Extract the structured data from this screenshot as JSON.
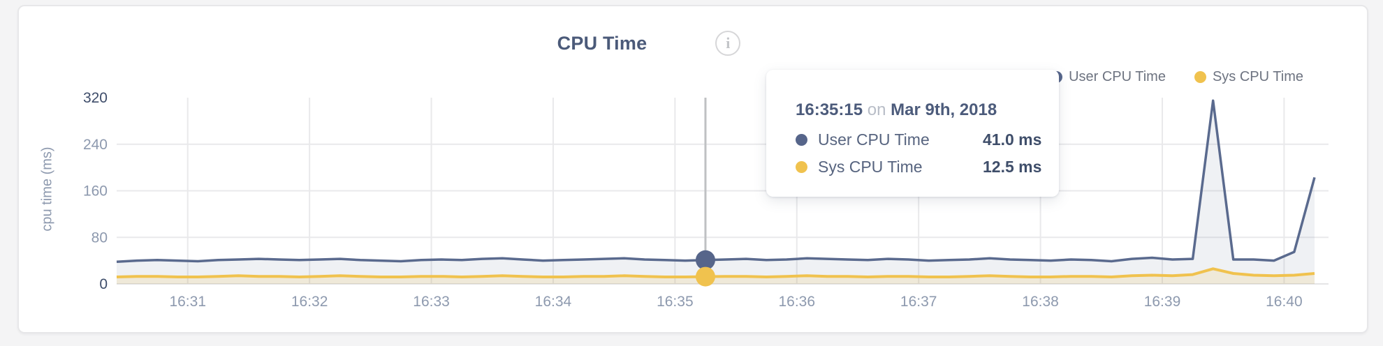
{
  "chart": {
    "title": "CPU Time",
    "info_icon": "i",
    "ylabel": "cpu time (ms)"
  },
  "legend": {
    "items": [
      {
        "label": "User CPU Time",
        "color": "#56658a"
      },
      {
        "label": "Sys CPU Time",
        "color": "#f0c24e"
      }
    ]
  },
  "tooltip": {
    "time": "16:35:15",
    "connector": "on",
    "date": "Mar 9th, 2018",
    "rows": [
      {
        "label": "User CPU Time",
        "value": "41.0 ms",
        "color": "#56658a"
      },
      {
        "label": "Sys CPU Time",
        "value": "12.5 ms",
        "color": "#f0c24e"
      }
    ]
  },
  "chart_data": {
    "type": "area",
    "title": "CPU Time",
    "xlabel": "",
    "ylabel": "cpu time (ms)",
    "ylim": [
      0,
      320
    ],
    "y_ticks": [
      320,
      240,
      160,
      80,
      0
    ],
    "x_tick_labels": [
      "16:31",
      "16:32",
      "16:33",
      "16:34",
      "16:35",
      "16:36",
      "16:37",
      "16:38",
      "16:39",
      "16:40"
    ],
    "start_time": "16:30:25",
    "sample_interval_seconds": 10,
    "date": "Mar 9th, 2018",
    "grid": true,
    "legend_position": "top-right",
    "hover": {
      "index": 29,
      "time": "16:35:15",
      "user_ms": 41.0,
      "sys_ms": 12.5
    },
    "series": [
      {
        "name": "User CPU Time",
        "color": "#5a6a8e",
        "fill": "rgba(99,114,145,0.10)",
        "values": [
          38,
          40,
          41,
          40,
          39,
          41,
          42,
          43,
          42,
          41,
          42,
          43,
          41,
          40,
          39,
          41,
          42,
          41,
          43,
          44,
          42,
          40,
          41,
          42,
          43,
          44,
          42,
          41,
          40,
          41,
          42,
          43,
          41,
          42,
          44,
          43,
          42,
          41,
          43,
          42,
          40,
          41,
          42,
          44,
          42,
          41,
          40,
          42,
          41,
          39,
          43,
          45,
          42,
          43,
          315,
          42,
          42,
          40,
          55,
          183
        ]
      },
      {
        "name": "Sys CPU Time",
        "color": "#f0c24e",
        "fill": "rgba(240,194,78,0.16)",
        "values": [
          12,
          13,
          13,
          12,
          12,
          13,
          14,
          13,
          13,
          12,
          13,
          14,
          13,
          12,
          12,
          13,
          13,
          12,
          13,
          14,
          13,
          12,
          12,
          13,
          13,
          14,
          13,
          12,
          12,
          12.5,
          13,
          13,
          12,
          13,
          14,
          13,
          13,
          12,
          13,
          13,
          12,
          12,
          13,
          14,
          13,
          12,
          12,
          13,
          13,
          12,
          14,
          15,
          14,
          16,
          26,
          18,
          15,
          14,
          15,
          18
        ]
      }
    ]
  }
}
